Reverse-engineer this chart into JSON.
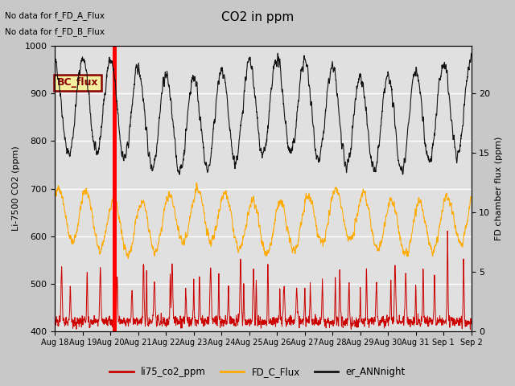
{
  "title": "CO2 in ppm",
  "ylabel_left": "Li-7500 CO2 (ppm)",
  "ylabel_right": "FD chamber flux (ppm)",
  "ylim_left": [
    400,
    1000
  ],
  "ylim_right": [
    0,
    24
  ],
  "annotation_lines": [
    "No data for f_FD_A_Flux",
    "No data for f_FD_B_Flux"
  ],
  "bc_flux_label": "BC_flux",
  "xtick_labels": [
    "Aug 18",
    "Aug 19",
    "Aug 20",
    "Aug 21",
    "Aug 22",
    "Aug 23",
    "Aug 24",
    "Aug 25",
    "Aug 26",
    "Aug 27",
    "Aug 28",
    "Aug 29",
    "Aug 30",
    "Aug 31",
    "Sep 1",
    "Sep 2"
  ],
  "legend_entries": [
    {
      "label": "li75_co2_ppm",
      "color": "#cc0000",
      "lw": 1.5
    },
    {
      "label": "FD_C_Flux",
      "color": "#ffaa00",
      "lw": 1.5
    },
    {
      "label": "er_ANNnight",
      "color": "#111111",
      "lw": 1.5
    }
  ],
  "fig_facecolor": "#c8c8c8",
  "ax_facecolor": "#e0e0e0",
  "grid_color": "#ffffff",
  "red_bar_day": 2.15,
  "red_bar_width": 0.07
}
